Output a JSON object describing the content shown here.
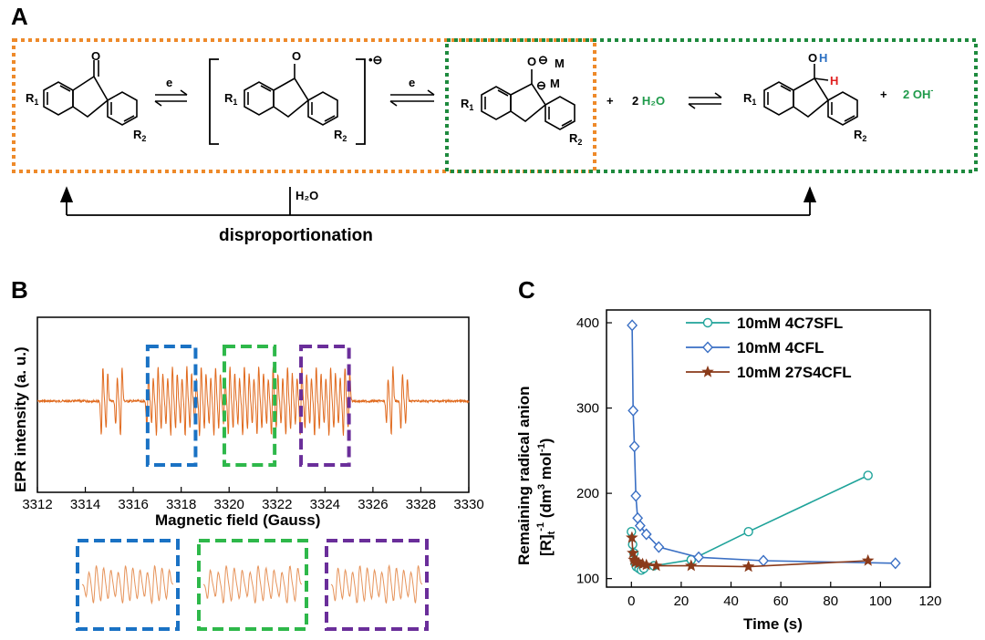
{
  "panel_a": {
    "label": "A",
    "arrow1_label": "e",
    "arrow2_label": "e",
    "radical_charge": "•⊖",
    "ketone_o": "O",
    "radical_o": "O",
    "dianion_o": "O",
    "dianion_m1": "M",
    "dianion_m2": "M",
    "alcohol_o": "O",
    "alcohol_h_oh": "H",
    "alcohol_h_ch": "H",
    "r1": "R",
    "r1_sub": "1",
    "r2": "R",
    "r2_sub": "2",
    "plus1": "+",
    "water_coef": "2 ",
    "water": "H₂O",
    "plus2": "+",
    "hydroxide": "2 OH",
    "hydroxide_charge": "-",
    "water_arrow_label": "H₂O",
    "disproportionation": "disproportionation",
    "colors": {
      "orange_box": "#ee8a2a",
      "green_box": "#1e8a3e",
      "blue_h": "#2a6fc2",
      "red_h": "#e02020",
      "green_text": "#1e9a4a"
    }
  },
  "panel_b": {
    "label": "B",
    "ylabel": "EPR intensity (a. u.)",
    "xlabel": "Magnetic field (Gauss)",
    "colors": {
      "trace": "#e06a1e",
      "box1": "#1a72c4",
      "box2": "#2eb84a",
      "box3": "#6a2e9a"
    },
    "chart_data": {
      "type": "line",
      "x_range": [
        3312,
        3330
      ],
      "x_ticks": [
        "3312",
        "3314",
        "3316",
        "3318",
        "3320",
        "3322",
        "3324",
        "3326",
        "3328",
        "3330"
      ],
      "lines_x": [
        3314.7,
        3314.9,
        3315.3,
        3315.5,
        3316.6,
        3316.8,
        3317.0,
        3317.2,
        3317.4,
        3317.6,
        3317.8,
        3318.0,
        3318.2,
        3318.4,
        3318.6,
        3318.8,
        3319.0,
        3319.2,
        3319.4,
        3319.6,
        3319.8,
        3320.0,
        3320.2,
        3320.4,
        3320.6,
        3320.8,
        3321.0,
        3321.2,
        3321.4,
        3321.6,
        3321.8,
        3322.0,
        3322.2,
        3322.4,
        3322.6,
        3322.8,
        3323.0,
        3323.2,
        3323.4,
        3323.6,
        3323.8,
        3324.0,
        3324.2,
        3324.4,
        3324.6,
        3324.8,
        3325.0,
        3326.6,
        3326.8,
        3327.2,
        3327.4
      ],
      "highlight_boxes": [
        [
          3316.6,
          3318.6
        ],
        [
          3319.8,
          3321.9
        ],
        [
          3323.0,
          3325.0
        ]
      ]
    }
  },
  "panel_c": {
    "label": "C",
    "ylabel_line1": "Remaining radical anion",
    "ylabel_line2": "[R]",
    "ylabel_line2_sub": "t",
    "ylabel_line2_sup": "-1",
    "ylabel_line2_units": " (dm",
    "ylabel_line2_units_sup": "3",
    "ylabel_line2_units_2": " mol",
    "ylabel_line2_units_sup2": "-1",
    "ylabel_line2_units_end": ")",
    "xlabel": "Time (s)",
    "chart_data": {
      "type": "line",
      "xlim": [
        -10,
        120
      ],
      "ylim": [
        90,
        415
      ],
      "x_ticks": [
        0,
        20,
        40,
        60,
        80,
        100,
        120
      ],
      "y_ticks": [
        100,
        200,
        300,
        400
      ],
      "series": [
        {
          "name": "10mM 4C7SFL",
          "color": "#1fa39a",
          "marker": "circle",
          "x": [
            0,
            0.5,
            1,
            1.5,
            2,
            3,
            4,
            5,
            9,
            24,
            47,
            95
          ],
          "y": [
            155,
            140,
            130,
            118,
            114,
            112,
            110,
            112,
            115,
            122,
            155,
            221
          ]
        },
        {
          "name": "10mM 4CFL",
          "color": "#3a6fc4",
          "marker": "diamond",
          "x": [
            0.3,
            0.7,
            1.2,
            1.8,
            2.5,
            3.5,
            6,
            11,
            27,
            53,
            106
          ],
          "y": [
            397,
            297,
            255,
            197,
            171,
            162,
            152,
            137,
            125,
            121,
            118
          ]
        },
        {
          "name": "10mM 27S4CFL",
          "color": "#8a3a1a",
          "marker": "star",
          "x": [
            0.2,
            0.6,
            1.0,
            1.5,
            2.2,
            3.0,
            4.5,
            6,
            10,
            24,
            47,
            95
          ],
          "y": [
            148,
            130,
            122,
            119,
            120,
            118,
            117,
            116,
            115,
            115,
            114,
            121
          ]
        }
      ]
    }
  }
}
